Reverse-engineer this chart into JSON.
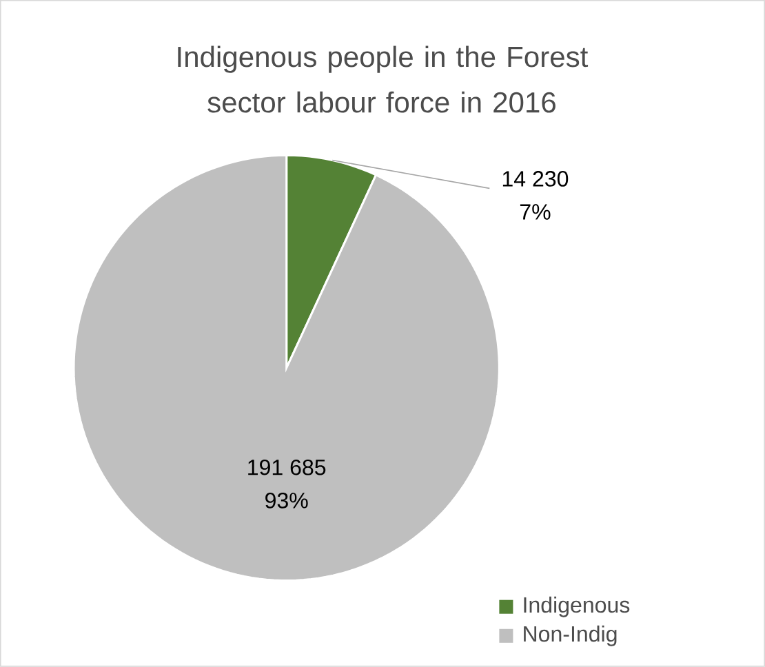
{
  "chart_data": {
    "type": "pie",
    "title": "Indigenous people in the Forest sector labour force in 2016",
    "categories": [
      "Indigenous",
      "Non-Indig"
    ],
    "values": [
      14230,
      191685
    ],
    "colors": [
      "#548235",
      "#bfbfbf"
    ],
    "value_labels": [
      "14 230",
      "191 685"
    ],
    "annotations": [
      "7%",
      "93%"
    ],
    "legend": "right"
  }
}
